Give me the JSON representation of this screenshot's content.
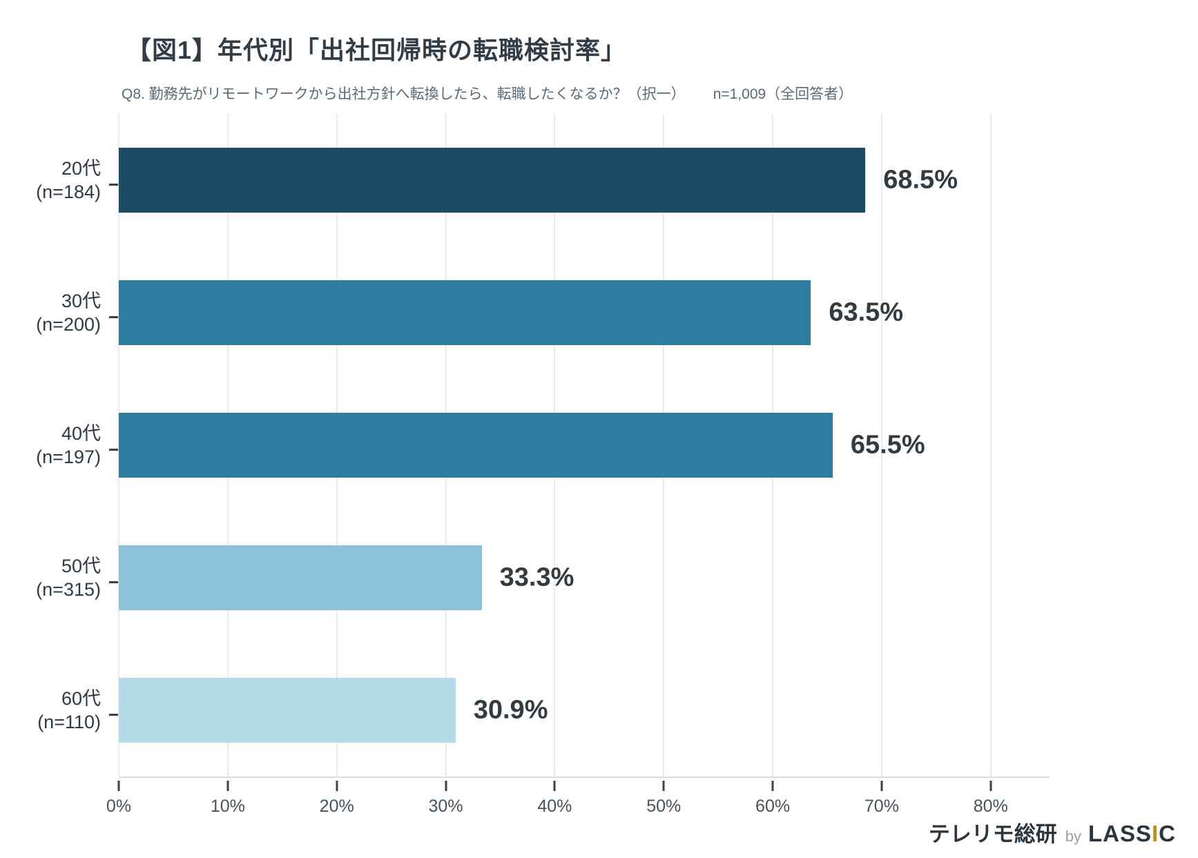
{
  "header": {
    "title": "【図1】年代別「出社回帰時の転職検討率」",
    "question": "Q8. 勤務先がリモートワークから出社方針へ転換したら、転職したくなるか？（択一）",
    "sample": "n=1,009（全回答者）"
  },
  "chart_data": {
    "type": "bar",
    "orientation": "horizontal",
    "title": "【図1】年代別「出社回帰時の転職検討率」",
    "subtitle": "Q8. 勤務先がリモートワークから出社方針へ転換したら、転職したくなるか？（択一）　n=1,009（全回答者）",
    "categories": [
      "20代 (n=184)",
      "30代 (n=200)",
      "40代 (n=197)",
      "50代 (n=315)",
      "60代 (n=110)"
    ],
    "values": [
      68.5,
      63.5,
      65.5,
      33.3,
      30.9
    ],
    "xlabel": "",
    "ylabel": "",
    "xlim": [
      0,
      85.4
    ],
    "x_tick_values": [
      0,
      10,
      20,
      30,
      40,
      50,
      60,
      70,
      80
    ],
    "x_tick_labels": [
      "0%",
      "10%",
      "20%",
      "30%",
      "40%",
      "50%",
      "60%",
      "70%",
      "80%"
    ],
    "grid": true,
    "legend": false,
    "bars": [
      {
        "age_label": "20代",
        "n_label": "(n=184)",
        "value": 68.5,
        "display": "68.5%",
        "color": "#1d4a64"
      },
      {
        "age_label": "30代",
        "n_label": "(n=200)",
        "value": 63.5,
        "display": "63.5%",
        "color": "#2e7da1"
      },
      {
        "age_label": "40代",
        "n_label": "(n=197)",
        "value": 65.5,
        "display": "65.5%",
        "color": "#2e7da1"
      },
      {
        "age_label": "50代",
        "n_label": "(n=315)",
        "value": 33.3,
        "display": "33.3%",
        "color": "#8cc3da"
      },
      {
        "age_label": "60代",
        "n_label": "(n=110)",
        "value": 30.9,
        "display": "30.9%",
        "color": "#b3dbe9"
      }
    ]
  },
  "footer": {
    "brand_jp": "テレリモ総研",
    "by": "by",
    "brand_en_1": "LASS",
    "brand_en_accent": "I",
    "brand_en_2": "C",
    "accent_color": "#b5922e"
  },
  "colors": {
    "bar_dark": "#1d4a64",
    "bar_mid": "#2e7da1",
    "bar_light": "#8cc3da",
    "bar_lighter": "#b3dbe9",
    "grid": "#ebebeb",
    "axis_line": "#dcdcdc",
    "tick": "#39434c",
    "title_text": "#323c46",
    "subtitle_text": "#5d6a74",
    "category_text": "#2f3a44",
    "value_text": "#333b41"
  }
}
